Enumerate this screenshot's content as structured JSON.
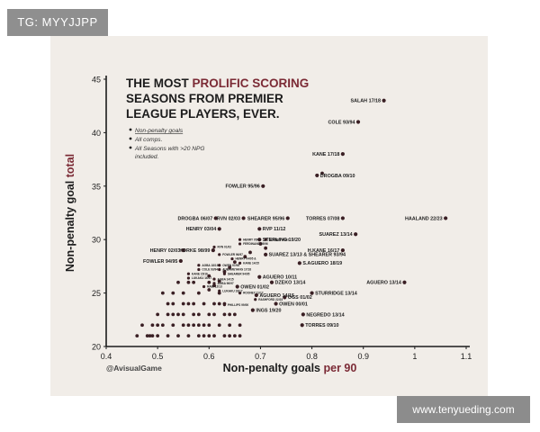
{
  "tag_text": "TG: MYYJJPP",
  "watermark_text": "www.tenyueding.com",
  "chart_data": {
    "type": "scatter",
    "title_lines": [
      [
        {
          "text": "THE MOST ",
          "accent": false
        },
        {
          "text": "PROLIFIC SCORING",
          "accent": true
        }
      ],
      [
        {
          "text": "SEASONS FROM PREMIER",
          "accent": false
        }
      ],
      [
        {
          "text": "LEAGUE PLAYERS, EVER.",
          "accent": false
        }
      ]
    ],
    "notes": [
      "Non-penalty goals",
      "All comps.",
      "All Seasons with >20 NPG",
      "included."
    ],
    "xlabel": {
      "main": "Non-penalty goals ",
      "accent": "per 90"
    },
    "ylabel": {
      "main": "Non-penalty goal ",
      "accent": "total"
    },
    "credit": "@AvisualGame",
    "xlim": [
      0.4,
      1.1
    ],
    "ylim": [
      20,
      45
    ],
    "xticks": [
      0.4,
      0.5,
      0.6,
      0.7,
      0.8,
      0.9,
      1,
      1.1
    ],
    "xtick_labels": [
      "0.4",
      "0.5",
      "0.6",
      "0.7",
      "0.8",
      "0.9",
      "1",
      "1.1"
    ],
    "yticks": [
      20,
      25,
      30,
      35,
      40,
      45
    ],
    "ytick_labels": [
      "20",
      "25",
      "30",
      "35",
      "40",
      "45"
    ],
    "colors": {
      "accent": "#7b2a35",
      "dot": "#3a1f24",
      "ink": "#1c1c1c"
    },
    "labeled_points": [
      {
        "label": "SALAH 17/18",
        "x": 0.94,
        "y": 43,
        "side": "left"
      },
      {
        "label": "COLE 93/94",
        "x": 0.89,
        "y": 41,
        "side": "left"
      },
      {
        "label": "KANE 17/18",
        "x": 0.86,
        "y": 38,
        "side": "left"
      },
      {
        "label": "DROGBA 09/10",
        "x": 0.81,
        "y": 36,
        "side": "right"
      },
      {
        "label": "FOWLER 95/96",
        "x": 0.705,
        "y": 35,
        "side": "left"
      },
      {
        "label": "DROGBA 06/07",
        "x": 0.613,
        "y": 32,
        "side": "left"
      },
      {
        "label": "RVN 02/03",
        "x": 0.667,
        "y": 32,
        "side": "left"
      },
      {
        "label": "SHEARER 95/96",
        "x": 0.753,
        "y": 32,
        "side": "left"
      },
      {
        "label": "TORRES 07/08",
        "x": 0.86,
        "y": 32,
        "side": "left"
      },
      {
        "label": "HAALAND 22/23",
        "x": 1.06,
        "y": 32,
        "side": "left"
      },
      {
        "label": "HENRY 03/04",
        "x": 0.62,
        "y": 31,
        "side": "left"
      },
      {
        "label": "RVP 11/12",
        "x": 0.698,
        "y": 31,
        "side": "right"
      },
      {
        "label": "SUAREZ 13/14",
        "x": 0.885,
        "y": 30.5,
        "side": "left"
      },
      {
        "label": "STERLING 19/20",
        "x": 0.698,
        "y": 30,
        "side": "right"
      },
      {
        "label": "YORKE 98/99",
        "x": 0.608,
        "y": 29,
        "side": "left"
      },
      {
        "label": "HENRY 02/03",
        "x": 0.55,
        "y": 29,
        "side": "left"
      },
      {
        "label": "H.KANE 16/17",
        "x": 0.86,
        "y": 29,
        "side": "left"
      },
      {
        "label": "SUAREZ 13/13 & SHEARER 93/94",
        "x": 0.71,
        "y": 28.6,
        "side": "right"
      },
      {
        "label": "S.AGUERO 18/19",
        "x": 0.776,
        "y": 27.8,
        "side": "right"
      },
      {
        "label": "FOWLER 94/95",
        "x": 0.545,
        "y": 28,
        "side": "left"
      },
      {
        "label": "AGUERO 10/11",
        "x": 0.698,
        "y": 26.5,
        "side": "right"
      },
      {
        "label": "AGUERO 13/14",
        "x": 0.98,
        "y": 26,
        "side": "left"
      },
      {
        "label": "DZEKO 13/14",
        "x": 0.722,
        "y": 26,
        "side": "right"
      },
      {
        "label": "OWEN 01/02",
        "x": 0.655,
        "y": 25.6,
        "side": "right"
      },
      {
        "label": "STURRIDGE 13/14",
        "x": 0.8,
        "y": 25,
        "side": "right"
      },
      {
        "label": "AGUERO 14/15",
        "x": 0.692,
        "y": 24.8,
        "side": "right"
      },
      {
        "label": "OGS 01/02",
        "x": 0.747,
        "y": 24.6,
        "side": "right"
      },
      {
        "label": "OWEN 00/01",
        "x": 0.73,
        "y": 24,
        "side": "right"
      },
      {
        "label": "INGS 19/20",
        "x": 0.685,
        "y": 23.4,
        "side": "right"
      },
      {
        "label": "NEGREDO 13/14",
        "x": 0.783,
        "y": 23,
        "side": "right"
      },
      {
        "label": "TORRES 09/10",
        "x": 0.781,
        "y": 22,
        "side": "right"
      }
    ],
    "tiny_labels": [
      {
        "label": "HENRY 05/06",
        "x": 0.66,
        "y": 30,
        "side": "right"
      },
      {
        "label": "ROONEY 09/10",
        "x": 0.71,
        "y": 30,
        "side": "right"
      },
      {
        "label": "FERDINAND 95/96",
        "x": 0.66,
        "y": 29.6,
        "side": "right"
      },
      {
        "label": "RVN 01/02",
        "x": 0.61,
        "y": 29.3,
        "side": "right"
      },
      {
        "label": "FOWLER 96/97",
        "x": 0.62,
        "y": 28.6,
        "side": "right"
      },
      {
        "label": "HENRY 04/05 &",
        "x": 0.645,
        "y": 28.2,
        "side": "right"
      },
      {
        "label": "KANE 14/15",
        "x": 0.66,
        "y": 27.8,
        "side": "right"
      },
      {
        "label": "AGBA 18/19",
        "x": 0.58,
        "y": 27.6,
        "side": "right"
      },
      {
        "label": "OWEN 97/98",
        "x": 0.62,
        "y": 27.6,
        "side": "right"
      },
      {
        "label": "COLE 93/94",
        "x": 0.58,
        "y": 27.2,
        "side": "right"
      },
      {
        "label": "AUBAMEYANG 17/18",
        "x": 0.62,
        "y": 27.2,
        "side": "right"
      },
      {
        "label": "KANE 15/16",
        "x": 0.56,
        "y": 26.8,
        "side": "right"
      },
      {
        "label": "LUKAKU 16/17",
        "x": 0.56,
        "y": 26.4,
        "side": "right"
      },
      {
        "label": "SHEARER 94/95",
        "x": 0.63,
        "y": 26.8,
        "side": "right"
      },
      {
        "label": "AGBA 14/15",
        "x": 0.61,
        "y": 26.3,
        "side": "right"
      },
      {
        "label": "AGBA 96/97",
        "x": 0.61,
        "y": 25.9,
        "side": "right"
      },
      {
        "label": "RABI 12/13",
        "x": 0.59,
        "y": 25.6,
        "side": "right"
      },
      {
        "label": "LUKAKU 18/17",
        "x": 0.62,
        "y": 25.2,
        "side": "right"
      },
      {
        "label": "ROONEY 11/12",
        "x": 0.66,
        "y": 25,
        "side": "right"
      },
      {
        "label": "PHILLIPS 99/00",
        "x": 0.63,
        "y": 23.9,
        "side": "right"
      },
      {
        "label": "RASHFORD 22/23",
        "x": 0.69,
        "y": 24.4,
        "side": "right"
      }
    ],
    "plain_points": [
      [
        0.82,
        36.2
      ],
      [
        0.7,
        29.6
      ],
      [
        0.71,
        29.2
      ],
      [
        0.68,
        28.8
      ],
      [
        0.67,
        28.4
      ],
      [
        0.65,
        27.9
      ],
      [
        0.64,
        27.4
      ],
      [
        0.63,
        27
      ],
      [
        0.6,
        26.6
      ],
      [
        0.62,
        26.1
      ],
      [
        0.61,
        25.7
      ],
      [
        0.6,
        25.3
      ],
      [
        0.48,
        21
      ],
      [
        0.485,
        21
      ],
      [
        0.49,
        22
      ],
      [
        0.5,
        23
      ],
      [
        0.51,
        22
      ],
      [
        0.52,
        24
      ],
      [
        0.53,
        23
      ],
      [
        0.54,
        21
      ],
      [
        0.55,
        22
      ],
      [
        0.56,
        24
      ],
      [
        0.57,
        23
      ],
      [
        0.58,
        21
      ],
      [
        0.59,
        22
      ],
      [
        0.6,
        23
      ],
      [
        0.61,
        21
      ],
      [
        0.62,
        22
      ],
      [
        0.63,
        24
      ],
      [
        0.64,
        23
      ],
      [
        0.65,
        21
      ],
      [
        0.66,
        22
      ],
      [
        0.51,
        25
      ],
      [
        0.53,
        25
      ],
      [
        0.55,
        25
      ],
      [
        0.57,
        26
      ],
      [
        0.59,
        24
      ],
      [
        0.61,
        24
      ],
      [
        0.63,
        23
      ],
      [
        0.56,
        26
      ],
      [
        0.54,
        26
      ],
      [
        0.58,
        25
      ],
      [
        0.52,
        21
      ],
      [
        0.5,
        21
      ],
      [
        0.46,
        21
      ],
      [
        0.47,
        22
      ],
      [
        0.5,
        22
      ],
      [
        0.53,
        22
      ],
      [
        0.57,
        22
      ],
      [
        0.6,
        22
      ],
      [
        0.64,
        22
      ],
      [
        0.55,
        23
      ],
      [
        0.58,
        23
      ],
      [
        0.61,
        23
      ],
      [
        0.53,
        24
      ],
      [
        0.57,
        24
      ],
      [
        0.49,
        21
      ],
      [
        0.56,
        21
      ],
      [
        0.6,
        21
      ],
      [
        0.63,
        21
      ],
      [
        0.64,
        21
      ],
      [
        0.59,
        21
      ],
      [
        0.55,
        24
      ],
      [
        0.52,
        23
      ],
      [
        0.62,
        24
      ],
      [
        0.65,
        23
      ],
      [
        0.66,
        21
      ],
      [
        0.54,
        23
      ],
      [
        0.56,
        22
      ],
      [
        0.58,
        22
      ],
      [
        0.6,
        26
      ],
      [
        0.62,
        25
      ]
    ]
  }
}
